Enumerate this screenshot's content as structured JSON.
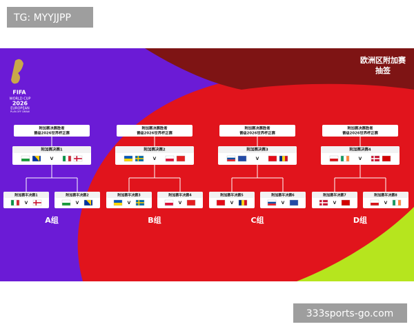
{
  "watermark": "TG: MYYJJPP",
  "site": "333sports-go.com",
  "header": {
    "title": "欧洲区附加赛",
    "subtitle": "抽签"
  },
  "logo": {
    "fifa": "FIFA",
    "line1": "WORLD CUP",
    "year": "2026",
    "line2": "EUROPEAN",
    "line3": "PLAY-OFF DRAW"
  },
  "versus": "V",
  "groups": [
    {
      "winner": [
        "附加赛决赛胜者",
        "晋级2026世界杯正赛"
      ],
      "final": "附加赛决赛1",
      "semis": [
        "附加赛半决赛1",
        "附加赛半决赛2"
      ],
      "label": "A组"
    },
    {
      "winner": [
        "附加赛决赛胜者",
        "晋级2026世界杯正赛"
      ],
      "final": "附加赛决赛2",
      "semis": [
        "附加赛半决赛3",
        "附加赛半决赛4"
      ],
      "label": "B组"
    },
    {
      "winner": [
        "附加赛决赛胜者",
        "晋级2026世界杯正赛"
      ],
      "final": "附加赛决赛3",
      "semis": [
        "附加赛半决赛5",
        "附加赛半决赛6"
      ],
      "label": "C组"
    },
    {
      "winner": [
        "附加赛决赛胜者",
        "晋级2026世界杯正赛"
      ],
      "final": "附加赛决赛4",
      "semis": [
        "附加赛半决赛7",
        "附加赛半决赛8"
      ],
      "label": "D组"
    }
  ]
}
